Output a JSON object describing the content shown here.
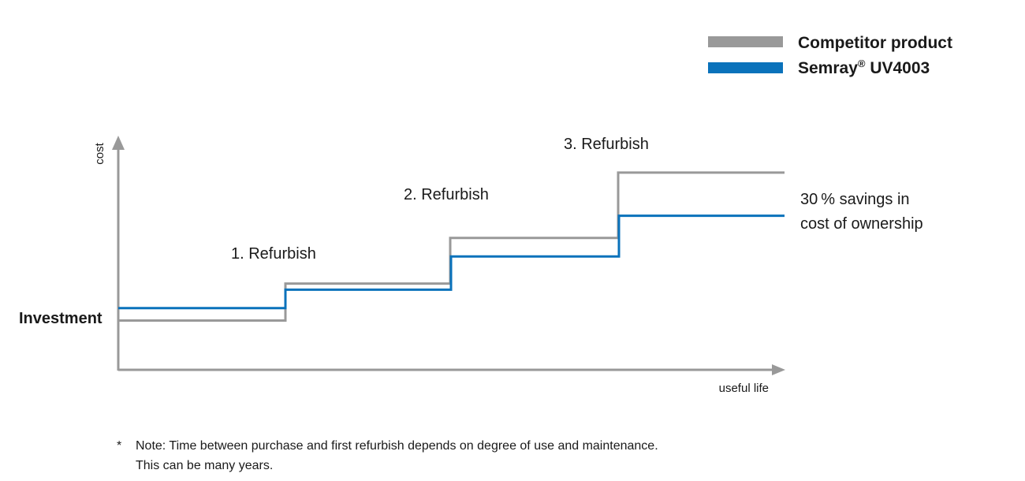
{
  "chart_data": {
    "type": "line",
    "title": "",
    "xlabel": "useful life",
    "ylabel": "cost",
    "y_start_label": "Investment",
    "step_labels": [
      "1. Refurbish",
      "2. Refurbish",
      "3. Refurbish"
    ],
    "series": [
      {
        "name": "Competitor product",
        "color": "#999999",
        "values": [
          1,
          4,
          7.7,
          13
        ]
      },
      {
        "name": "Semray® UV4003",
        "color": "#0a72bb",
        "values": [
          2,
          3.5,
          6.2,
          9.5
        ]
      }
    ],
    "annotation_lines": [
      "30 % savings in",
      "cost of ownership"
    ],
    "ylim": [
      -3,
      16
    ],
    "grid": false,
    "legend": "top-right"
  },
  "legend": {
    "competitor_label": "Competitor product",
    "semray_name": "Semray",
    "semray_reg": "®",
    "semray_model": " UV4003"
  },
  "note": {
    "marker": "*",
    "line1": "Note: Time between purchase and first refurbish depends on degree of use and maintenance.",
    "line2": "This can be many years."
  }
}
